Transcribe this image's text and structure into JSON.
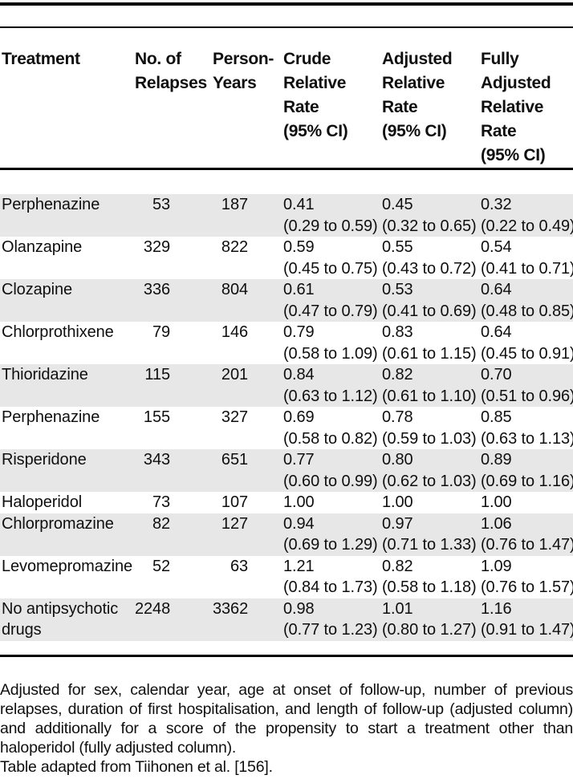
{
  "table": {
    "columns": [
      {
        "label": "Treatment"
      },
      {
        "label": "No. of\nRelapses"
      },
      {
        "label": "Person-\nYears"
      },
      {
        "label": "Crude\nRelative\nRate\n(95% CI)"
      },
      {
        "label": "Adjusted\nRelative\nRate\n(95% CI)"
      },
      {
        "label": "Fully\nAdjusted\nRelative\nRate\n(95% CI)"
      }
    ],
    "rows": [
      {
        "treatment": "Perphenazine",
        "relapses": "53",
        "person_years": "187",
        "crude": {
          "rate": "0.41",
          "ci": "(0.29 to 0.59)"
        },
        "adjusted": {
          "rate": "0.45",
          "ci": "(0.32 to 0.65)"
        },
        "fully_adjusted": {
          "rate": "0.32",
          "ci": "(0.22 to 0.49)"
        }
      },
      {
        "treatment": "Olanzapine",
        "relapses": "329",
        "person_years": "822",
        "crude": {
          "rate": "0.59",
          "ci": "(0.45 to 0.75)"
        },
        "adjusted": {
          "rate": "0.55",
          "ci": "(0.43 to 0.72)"
        },
        "fully_adjusted": {
          "rate": "0.54",
          "ci": "(0.41 to 0.71)"
        }
      },
      {
        "treatment": "Clozapine",
        "relapses": "336",
        "person_years": "804",
        "crude": {
          "rate": "0.61",
          "ci": "(0.47 to 0.79)"
        },
        "adjusted": {
          "rate": "0.53",
          "ci": "(0.41 to 0.69)"
        },
        "fully_adjusted": {
          "rate": "0.64",
          "ci": "(0.48 to 0.85)"
        }
      },
      {
        "treatment": "Chlorprothixene",
        "relapses": "79",
        "person_years": "146",
        "crude": {
          "rate": "0.79",
          "ci": "(0.58 to 1.09)"
        },
        "adjusted": {
          "rate": "0.83",
          "ci": "(0.61 to 1.15)"
        },
        "fully_adjusted": {
          "rate": "0.64",
          "ci": "(0.45 to 0.91)"
        }
      },
      {
        "treatment": "Thioridazine",
        "relapses": "115",
        "person_years": "201",
        "crude": {
          "rate": "0.84",
          "ci": "(0.63 to 1.12)"
        },
        "adjusted": {
          "rate": "0.82",
          "ci": "(0.61 to 1.10)"
        },
        "fully_adjusted": {
          "rate": "0.70",
          "ci": "(0.51 to 0.96)"
        }
      },
      {
        "treatment": "Perphenazine",
        "relapses": "155",
        "person_years": "327",
        "crude": {
          "rate": "0.69",
          "ci": "(0.58 to 0.82)"
        },
        "adjusted": {
          "rate": "0.78",
          "ci": "(0.59 to 1.03)"
        },
        "fully_adjusted": {
          "rate": "0.85",
          "ci": "(0.63 to 1.13)"
        }
      },
      {
        "treatment": "Risperidone",
        "relapses": "343",
        "person_years": "651",
        "crude": {
          "rate": "0.77",
          "ci": "(0.60 to 0.99)"
        },
        "adjusted": {
          "rate": "0.80",
          "ci": "(0.62 to 1.03)"
        },
        "fully_adjusted": {
          "rate": "0.89",
          "ci": "(0.69 to 1.16)"
        }
      },
      {
        "treatment": "Haloperidol",
        "relapses": "73",
        "person_years": "107",
        "crude": {
          "rate": "1.00",
          "ci": ""
        },
        "adjusted": {
          "rate": "1.00",
          "ci": ""
        },
        "fully_adjusted": {
          "rate": "1.00",
          "ci": ""
        }
      },
      {
        "treatment": "Chlorpromazine",
        "relapses": "82",
        "person_years": "127",
        "crude": {
          "rate": "0.94",
          "ci": "(0.69 to 1.29)"
        },
        "adjusted": {
          "rate": "0.97",
          "ci": "(0.71 to 1.33)"
        },
        "fully_adjusted": {
          "rate": "1.06",
          "ci": "(0.76 to 1.47)"
        }
      },
      {
        "treatment": "Levomepromazine",
        "relapses": "52",
        "person_years": "63",
        "crude": {
          "rate": "1.21",
          "ci": "(0.84 to 1.73)"
        },
        "adjusted": {
          "rate": "0.82",
          "ci": "(0.58 to 1.18)"
        },
        "fully_adjusted": {
          "rate": "1.09",
          "ci": "(0.76 to 1.57)"
        }
      },
      {
        "treatment": "No antipsychotic drugs",
        "relapses": "2248",
        "person_years": "3362",
        "crude": {
          "rate": "0.98",
          "ci": "(0.77 to 1.23)"
        },
        "adjusted": {
          "rate": "1.01",
          "ci": "(0.80 to 1.27)"
        },
        "fully_adjusted": {
          "rate": "1.16",
          "ci": "(0.91 to 1.47)"
        }
      }
    ]
  },
  "footnote": {
    "adjustment_note": "Adjusted for sex, calendar year, age at onset of follow-up, number of previous relapses, duration of first hospitalisation, and length of follow-up (adjusted column) and additionally for a score of the propensity to start a treatment other than haloperidol (fully adjusted column).",
    "source": "Table adapted from Tiihonen et al. [156]."
  },
  "colors": {
    "row_stripe": "#e7e7e7",
    "rule": "#000000",
    "text": "#0f0f0f"
  }
}
